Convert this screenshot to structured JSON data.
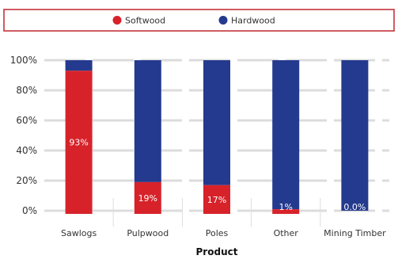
{
  "chart_data": {
    "type": "bar",
    "stacked": true,
    "percent": true,
    "categories": [
      "Sawlogs",
      "Pulpwood",
      "Poles",
      "Other",
      "Mining Timber"
    ],
    "series": [
      {
        "name": "Softwood",
        "color": "#d7222a",
        "values": [
          93,
          19,
          17,
          1,
          0.0
        ],
        "labels": [
          "93%",
          "19%",
          "17%",
          "1%",
          "0.0%"
        ]
      },
      {
        "name": "Hardwood",
        "color": "#243a8e",
        "values": [
          7,
          81,
          83,
          99,
          100
        ]
      }
    ],
    "xlabel": "Product",
    "ylabel": "",
    "ylim": [
      0,
      100
    ],
    "yticks": [
      "0%",
      "20%",
      "40%",
      "60%",
      "80%",
      "100%"
    ],
    "grid": true,
    "legend": "top-center"
  }
}
